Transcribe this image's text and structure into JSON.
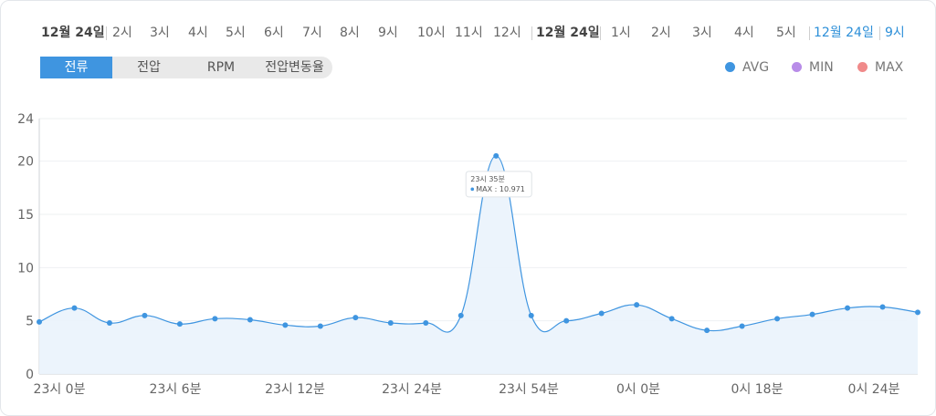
{
  "timeline": {
    "items": [
      {
        "label": "12월 24일",
        "kind": "date"
      },
      {
        "label": "2시",
        "kind": "hour"
      },
      {
        "label": "3시",
        "kind": "hour"
      },
      {
        "label": "4시",
        "kind": "hour"
      },
      {
        "label": "5시",
        "kind": "hour"
      },
      {
        "label": "6시",
        "kind": "hour"
      },
      {
        "label": "7시",
        "kind": "hour"
      },
      {
        "label": "8시",
        "kind": "hour"
      },
      {
        "label": "9시",
        "kind": "hour"
      },
      {
        "label": "10시",
        "kind": "hour"
      },
      {
        "label": "11시",
        "kind": "hour"
      },
      {
        "label": "12시",
        "kind": "hour"
      },
      {
        "label": "12월 24일",
        "kind": "date"
      },
      {
        "label": "1시",
        "kind": "hour"
      },
      {
        "label": "2시",
        "kind": "hour"
      },
      {
        "label": "3시",
        "kind": "hour"
      },
      {
        "label": "4시",
        "kind": "hour"
      },
      {
        "label": "5시",
        "kind": "hour"
      },
      {
        "label": "12월 24일",
        "kind": "selected"
      },
      {
        "label": "9시",
        "kind": "selected"
      }
    ]
  },
  "tabs": [
    {
      "label": "전류",
      "active": true
    },
    {
      "label": "전압",
      "active": false
    },
    {
      "label": "RPM",
      "active": false
    },
    {
      "label": "전압변동율",
      "active": false
    }
  ],
  "legend": [
    {
      "label": "AVG",
      "color": "#3f95e0"
    },
    {
      "label": "MIN",
      "color": "#b88ce8"
    },
    {
      "label": "MAX",
      "color": "#f08a8a"
    }
  ],
  "tooltip": {
    "title": "23시 35분",
    "value": "MAX : 10.971"
  },
  "chart_data": {
    "type": "area",
    "ylim": [
      0,
      24
    ],
    "yticks": [
      0,
      5,
      10,
      15,
      20,
      24
    ],
    "grid": true,
    "legend_position": "top-right",
    "x_tick_labels": [
      "23시 0분",
      "23시 6분",
      "23시 12분",
      "23시 24분",
      "23시 54분",
      "0시 0분",
      "0시 18분",
      "0시 24분"
    ],
    "series": [
      {
        "name": "AVG",
        "color": "#3f95e0",
        "values": [
          4.9,
          6.2,
          4.8,
          5.5,
          4.7,
          5.2,
          5.1,
          4.6,
          4.5,
          5.3,
          4.8,
          4.8,
          5.5,
          20.5,
          5.5,
          5.0,
          5.7,
          6.5,
          5.2,
          4.1,
          4.5,
          5.2,
          5.6,
          6.2,
          6.3,
          5.8
        ]
      }
    ]
  }
}
